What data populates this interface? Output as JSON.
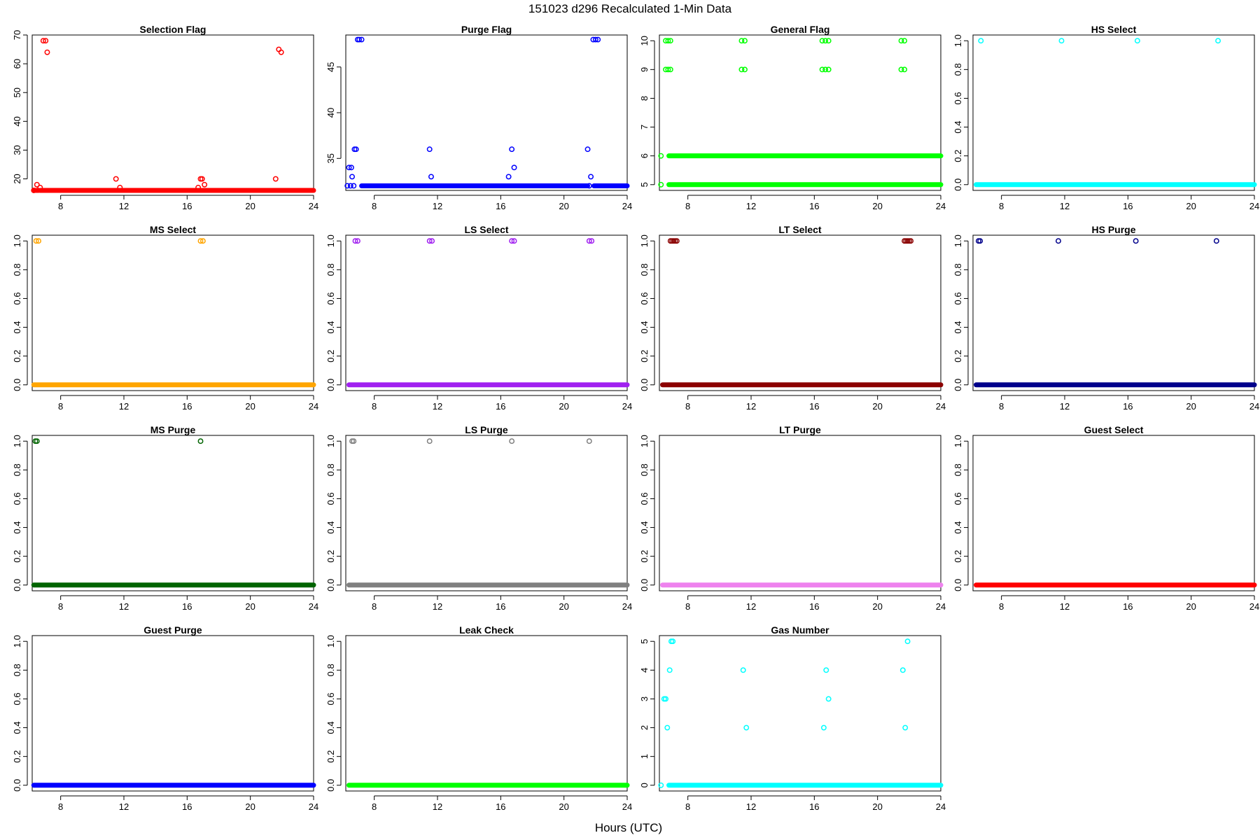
{
  "figure": {
    "title": "151023   d296   Recalculated 1-Min Data",
    "xlabel": "Hours (UTC)"
  },
  "chart_data": [
    {
      "type": "scatter",
      "title": "Selection Flag",
      "color": "#ff0000",
      "xlim": [
        6.2,
        24
      ],
      "ylim": [
        16,
        70
      ],
      "xticks": [
        8,
        12,
        16,
        20,
        24
      ],
      "yticks": [
        20,
        30,
        40,
        50,
        60,
        70
      ],
      "points": [
        [
          6.3,
          16
        ],
        [
          6.5,
          18
        ],
        [
          6.7,
          17
        ],
        [
          6.9,
          68
        ],
        [
          7.05,
          68
        ],
        [
          7.15,
          64
        ],
        [
          11.5,
          20
        ],
        [
          11.75,
          17
        ],
        [
          16.7,
          17
        ],
        [
          16.85,
          20
        ],
        [
          16.95,
          20
        ],
        [
          17.1,
          18
        ],
        [
          21.6,
          20
        ],
        [
          21.8,
          65
        ],
        [
          21.95,
          64
        ]
      ],
      "runs": [
        [
          6.3,
          6.6,
          16
        ],
        [
          6.7,
          24,
          16
        ]
      ]
    },
    {
      "type": "scatter",
      "title": "Purge Flag",
      "color": "#0000ff",
      "xlim": [
        6.2,
        24
      ],
      "ylim": [
        31.5,
        48.5
      ],
      "xticks": [
        8,
        12,
        16,
        20,
        24
      ],
      "yticks": [
        35,
        40,
        45
      ],
      "points": [
        [
          6.3,
          32
        ],
        [
          6.5,
          32
        ],
        [
          6.7,
          32
        ],
        [
          6.4,
          34
        ],
        [
          6.55,
          34
        ],
        [
          6.6,
          33
        ],
        [
          6.75,
          36
        ],
        [
          6.85,
          36
        ],
        [
          6.95,
          48
        ],
        [
          7.05,
          48
        ],
        [
          7.2,
          48
        ],
        [
          11.5,
          36
        ],
        [
          11.6,
          33
        ],
        [
          16.5,
          33
        ],
        [
          16.7,
          36
        ],
        [
          16.85,
          34
        ],
        [
          21.5,
          36
        ],
        [
          21.7,
          33
        ],
        [
          21.6,
          32
        ],
        [
          21.85,
          48
        ],
        [
          22.0,
          48
        ],
        [
          22.15,
          48
        ]
      ],
      "runs": [
        [
          7.2,
          21.5,
          32
        ],
        [
          21.9,
          24,
          32
        ]
      ]
    },
    {
      "type": "scatter",
      "title": "General Flag",
      "color": "#00ff00",
      "xlim": [
        6.2,
        24
      ],
      "ylim": [
        4.8,
        10.2
      ],
      "xticks": [
        8,
        12,
        16,
        20,
        24
      ],
      "yticks": [
        5,
        6,
        7,
        8,
        9,
        10
      ],
      "points": [
        [
          6.3,
          5
        ],
        [
          6.3,
          6
        ],
        [
          6.6,
          10
        ],
        [
          6.75,
          10
        ],
        [
          6.9,
          10
        ],
        [
          6.6,
          9
        ],
        [
          6.75,
          9
        ],
        [
          6.9,
          9
        ],
        [
          11.4,
          10
        ],
        [
          11.6,
          10
        ],
        [
          11.4,
          9
        ],
        [
          11.6,
          9
        ],
        [
          16.5,
          10
        ],
        [
          16.7,
          10
        ],
        [
          16.9,
          10
        ],
        [
          16.5,
          9
        ],
        [
          16.7,
          9
        ],
        [
          16.9,
          9
        ],
        [
          21.5,
          10
        ],
        [
          21.7,
          10
        ],
        [
          21.5,
          9
        ],
        [
          21.7,
          9
        ]
      ],
      "runs": [
        [
          6.8,
          24,
          6
        ],
        [
          6.8,
          24,
          5
        ]
      ]
    },
    {
      "type": "scatter",
      "title": "HS Select",
      "color": "#00ffff",
      "xlim": [
        6.2,
        24
      ],
      "ylim": [
        -0.04,
        1.04
      ],
      "xticks": [
        8,
        12,
        16,
        20,
        24
      ],
      "yticks": [
        0.0,
        0.2,
        0.4,
        0.6,
        0.8,
        1.0
      ],
      "points": [
        [
          6.7,
          1
        ],
        [
          11.8,
          1
        ],
        [
          16.6,
          1
        ],
        [
          21.7,
          1
        ]
      ],
      "runs": [
        [
          6.4,
          24,
          0
        ]
      ]
    },
    {
      "type": "scatter",
      "title": "MS Select",
      "color": "#ffa500",
      "xlim": [
        6.2,
        24
      ],
      "ylim": [
        -0.04,
        1.04
      ],
      "xticks": [
        8,
        12,
        16,
        20,
        24
      ],
      "yticks": [
        0.0,
        0.2,
        0.4,
        0.6,
        0.8,
        1.0
      ],
      "points": [
        [
          6.45,
          1
        ],
        [
          6.6,
          1
        ],
        [
          16.85,
          1
        ],
        [
          17.0,
          1
        ]
      ],
      "runs": [
        [
          6.3,
          24,
          0
        ]
      ]
    },
    {
      "type": "scatter",
      "title": "LS Select",
      "color": "#a020f0",
      "xlim": [
        6.2,
        24
      ],
      "ylim": [
        -0.04,
        1.04
      ],
      "xticks": [
        8,
        12,
        16,
        20,
        24
      ],
      "yticks": [
        0.0,
        0.2,
        0.4,
        0.6,
        0.8,
        1.0
      ],
      "points": [
        [
          6.8,
          1
        ],
        [
          6.95,
          1
        ],
        [
          11.5,
          1
        ],
        [
          11.65,
          1
        ],
        [
          16.7,
          1
        ],
        [
          16.85,
          1
        ],
        [
          21.6,
          1
        ],
        [
          21.75,
          1
        ]
      ],
      "runs": [
        [
          6.4,
          24,
          0
        ]
      ]
    },
    {
      "type": "scatter",
      "title": "LT Select",
      "color": "#8b0000",
      "xlim": [
        6.2,
        24
      ],
      "ylim": [
        -0.04,
        1.04
      ],
      "xticks": [
        8,
        12,
        16,
        20,
        24
      ],
      "yticks": [
        0.0,
        0.2,
        0.4,
        0.6,
        0.8,
        1.0
      ],
      "points": [
        [
          6.9,
          1
        ],
        [
          7.0,
          1
        ],
        [
          7.1,
          1
        ],
        [
          7.2,
          1
        ],
        [
          7.3,
          1
        ],
        [
          21.7,
          1
        ],
        [
          21.8,
          1
        ],
        [
          21.9,
          1
        ],
        [
          22.0,
          1
        ],
        [
          22.1,
          1
        ]
      ],
      "runs": [
        [
          6.4,
          24,
          0
        ]
      ]
    },
    {
      "type": "scatter",
      "title": "HS Purge",
      "color": "#00008b",
      "xlim": [
        6.2,
        24
      ],
      "ylim": [
        -0.04,
        1.04
      ],
      "xticks": [
        8,
        12,
        16,
        20,
        24
      ],
      "yticks": [
        0.0,
        0.2,
        0.4,
        0.6,
        0.8,
        1.0
      ],
      "points": [
        [
          6.55,
          1
        ],
        [
          6.65,
          1
        ],
        [
          11.6,
          1
        ],
        [
          16.5,
          1
        ],
        [
          21.6,
          1
        ]
      ],
      "runs": [
        [
          6.4,
          24,
          0
        ]
      ]
    },
    {
      "type": "scatter",
      "title": "MS Purge",
      "color": "#006400",
      "xlim": [
        6.2,
        24
      ],
      "ylim": [
        -0.04,
        1.04
      ],
      "xticks": [
        8,
        12,
        16,
        20,
        24
      ],
      "yticks": [
        0.0,
        0.2,
        0.4,
        0.6,
        0.8,
        1.0
      ],
      "points": [
        [
          6.4,
          1
        ],
        [
          6.5,
          1
        ],
        [
          16.85,
          1
        ]
      ],
      "runs": [
        [
          6.3,
          24,
          0
        ]
      ]
    },
    {
      "type": "scatter",
      "title": "LS Purge",
      "color": "#808080",
      "xlim": [
        6.2,
        24
      ],
      "ylim": [
        -0.04,
        1.04
      ],
      "xticks": [
        8,
        12,
        16,
        20,
        24
      ],
      "yticks": [
        0.0,
        0.2,
        0.4,
        0.6,
        0.8,
        1.0
      ],
      "points": [
        [
          6.6,
          1
        ],
        [
          6.7,
          1
        ],
        [
          11.5,
          1
        ],
        [
          16.7,
          1
        ],
        [
          21.6,
          1
        ]
      ],
      "runs": [
        [
          6.4,
          24,
          0
        ]
      ]
    },
    {
      "type": "scatter",
      "title": "LT Purge",
      "color": "#ee82ee",
      "xlim": [
        6.2,
        24
      ],
      "ylim": [
        -0.04,
        1.04
      ],
      "xticks": [
        8,
        12,
        16,
        20,
        24
      ],
      "yticks": [
        0.0,
        0.2,
        0.4,
        0.6,
        0.8,
        1.0
      ],
      "points": [],
      "runs": [
        [
          6.4,
          24,
          0
        ]
      ]
    },
    {
      "type": "scatter",
      "title": "Guest Select",
      "color": "#ff0000",
      "xlim": [
        6.2,
        24
      ],
      "ylim": [
        -0.04,
        1.04
      ],
      "xticks": [
        8,
        12,
        16,
        20,
        24
      ],
      "yticks": [
        0.0,
        0.2,
        0.4,
        0.6,
        0.8,
        1.0
      ],
      "points": [],
      "runs": [
        [
          6.4,
          24,
          0
        ]
      ]
    },
    {
      "type": "scatter",
      "title": "Guest Purge",
      "color": "#0000ff",
      "xlim": [
        6.2,
        24
      ],
      "ylim": [
        -0.04,
        1.04
      ],
      "xticks": [
        8,
        12,
        16,
        20,
        24
      ],
      "yticks": [
        0.0,
        0.2,
        0.4,
        0.6,
        0.8,
        1.0
      ],
      "points": [],
      "runs": [
        [
          6.3,
          24,
          0
        ]
      ]
    },
    {
      "type": "scatter",
      "title": "Leak Check",
      "color": "#00ff00",
      "xlim": [
        6.2,
        24
      ],
      "ylim": [
        -0.04,
        1.04
      ],
      "xticks": [
        8,
        12,
        16,
        20,
        24
      ],
      "yticks": [
        0.0,
        0.2,
        0.4,
        0.6,
        0.8,
        1.0
      ],
      "points": [],
      "runs": [
        [
          6.4,
          24,
          0
        ]
      ]
    },
    {
      "type": "scatter",
      "title": "Gas Number",
      "color": "#00ffff",
      "xlim": [
        6.2,
        24
      ],
      "ylim": [
        -0.2,
        5.2
      ],
      "xticks": [
        8,
        12,
        16,
        20,
        24
      ],
      "yticks": [
        0,
        1,
        2,
        3,
        4,
        5
      ],
      "points": [
        [
          6.3,
          0
        ],
        [
          6.5,
          3
        ],
        [
          6.6,
          3
        ],
        [
          6.7,
          2
        ],
        [
          6.85,
          4
        ],
        [
          6.95,
          5
        ],
        [
          7.05,
          5
        ],
        [
          11.5,
          4
        ],
        [
          11.7,
          2
        ],
        [
          16.6,
          2
        ],
        [
          16.75,
          4
        ],
        [
          16.9,
          3
        ],
        [
          21.6,
          4
        ],
        [
          21.75,
          2
        ],
        [
          21.9,
          5
        ]
      ],
      "runs": [
        [
          6.8,
          24,
          0
        ]
      ]
    }
  ]
}
